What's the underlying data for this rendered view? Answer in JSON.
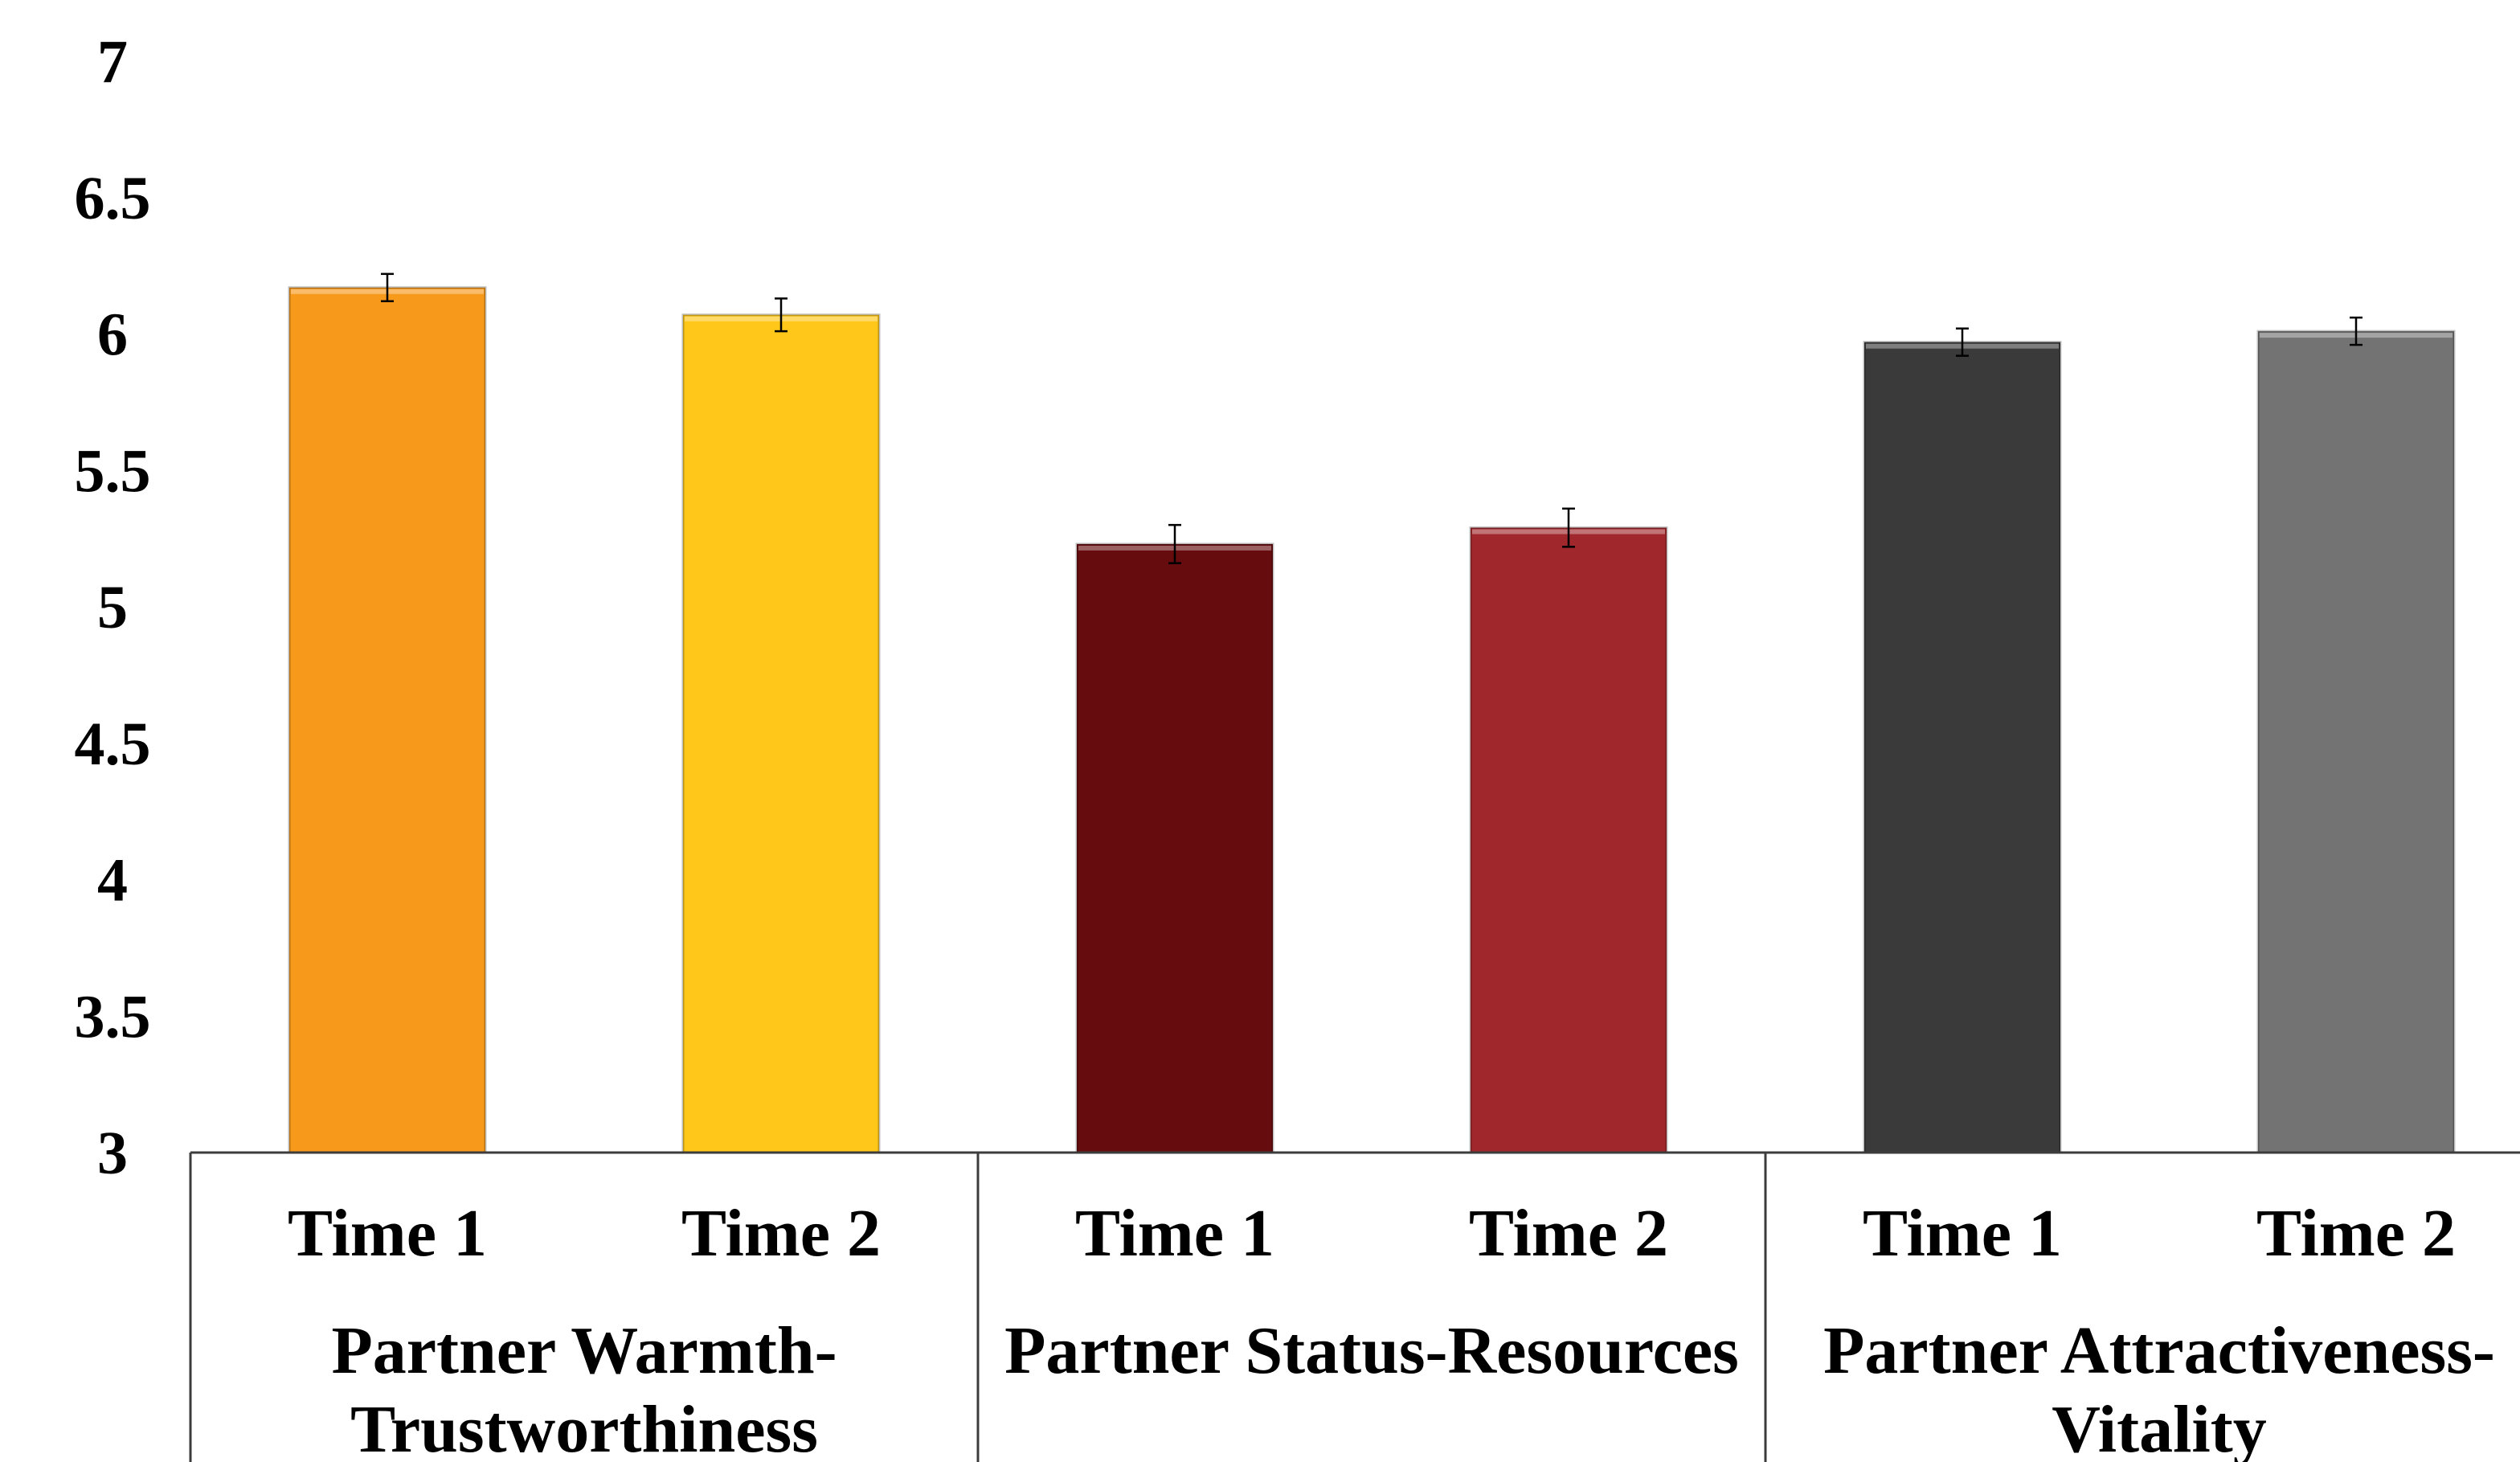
{
  "chart_data": {
    "type": "bar",
    "title": "",
    "xlabel": "",
    "ylabel": "",
    "ylim": [
      3,
      7
    ],
    "yticks": [
      "3",
      "3.5",
      "4",
      "4.5",
      "5",
      "5.5",
      "6",
      "6.5",
      "7"
    ],
    "grid": false,
    "legend": "none",
    "groups": [
      {
        "label_lines": [
          "Partner Warmth-",
          "Trustworthiness"
        ],
        "bars": [
          {
            "category": "Time 1",
            "value": 6.17,
            "error": 0.05,
            "color": "#F7991A"
          },
          {
            "category": "Time 2",
            "value": 6.07,
            "error": 0.06,
            "color": "#FFC719"
          }
        ]
      },
      {
        "label_lines": [
          "Partner Status-Resources"
        ],
        "bars": [
          {
            "category": "Time 1",
            "value": 5.23,
            "error": 0.07,
            "color": "#660C0E"
          },
          {
            "category": "Time 2",
            "value": 5.29,
            "error": 0.07,
            "color": "#A0282C"
          }
        ]
      },
      {
        "label_lines": [
          "Partner Attractiveness-",
          "Vitality"
        ],
        "bars": [
          {
            "category": "Time 1",
            "value": 5.97,
            "error": 0.05,
            "color": "#3A3A3A"
          },
          {
            "category": "Time 2",
            "value": 6.01,
            "error": 0.05,
            "color": "#737373"
          }
        ]
      }
    ]
  }
}
